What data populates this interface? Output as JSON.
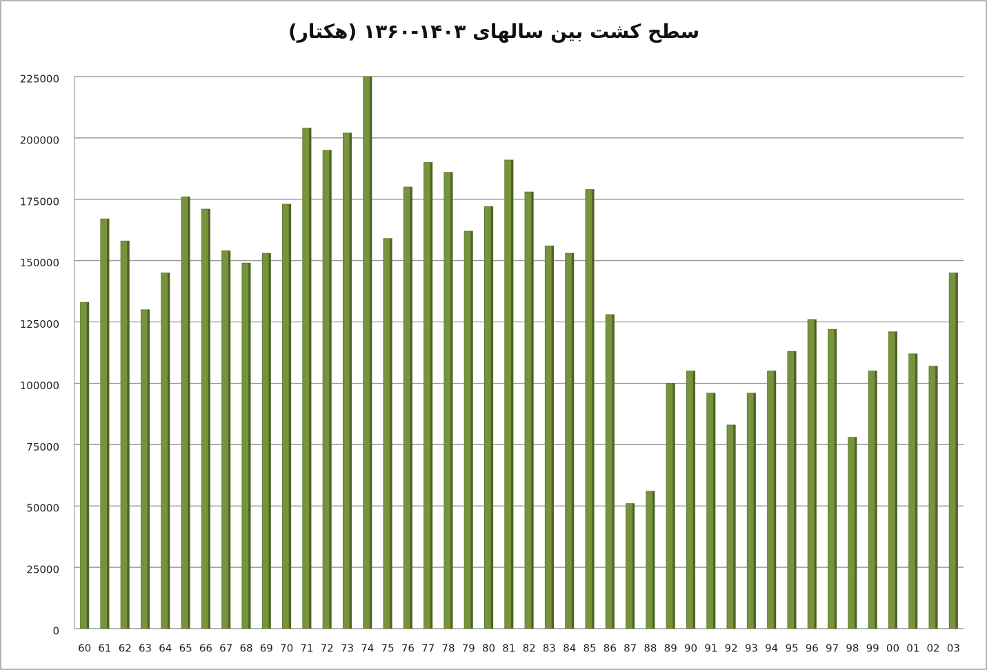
{
  "chart_data": {
    "type": "bar",
    "title": "سطح کشت بین سالهای ۱۴۰۳-۱۳۶۰ (هکتار)",
    "categories": [
      "60",
      "61",
      "62",
      "63",
      "64",
      "65",
      "66",
      "67",
      "68",
      "69",
      "70",
      "71",
      "72",
      "73",
      "74",
      "75",
      "76",
      "77",
      "78",
      "79",
      "80",
      "81",
      "82",
      "83",
      "84",
      "85",
      "86",
      "87",
      "88",
      "89",
      "90",
      "91",
      "92",
      "93",
      "94",
      "95",
      "96",
      "97",
      "98",
      "99",
      "00",
      "01",
      "02",
      "03"
    ],
    "values": [
      133000,
      167000,
      158000,
      130000,
      145000,
      176000,
      171000,
      154000,
      149000,
      153000,
      173000,
      204000,
      195000,
      202000,
      225000,
      159000,
      180000,
      190000,
      186000,
      162000,
      172000,
      191000,
      178000,
      156000,
      153000,
      179000,
      128000,
      51000,
      56000,
      100000,
      105000,
      96000,
      83000,
      96000,
      105000,
      113000,
      126000,
      122000,
      78000,
      105000,
      121000,
      112000,
      107000,
      145000
    ],
    "color": "#77933c",
    "ylim": [
      0,
      225000
    ],
    "yticks": [
      0,
      25000,
      50000,
      75000,
      100000,
      125000,
      150000,
      175000,
      200000,
      225000
    ],
    "grid": true
  }
}
